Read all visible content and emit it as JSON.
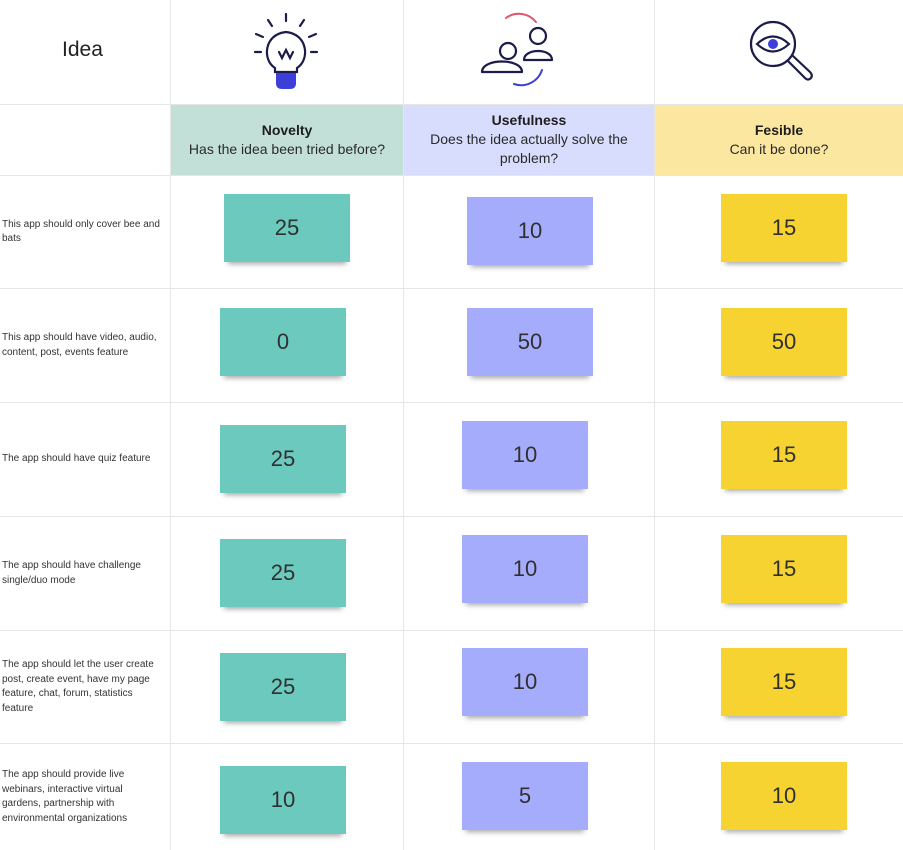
{
  "board": {
    "title": "Idea",
    "columns": [
      {
        "title": "Novelty",
        "subtitle": "Has the idea been tried before?",
        "color": "#c3e0d8",
        "note_color": "#6cc9bd",
        "icon": "lightbulb-icon"
      },
      {
        "title": "Usefulness",
        "subtitle": "Does the idea actually solve the problem?",
        "color": "#d9ddfd",
        "note_color": "#a5acfb",
        "icon": "users-icon"
      },
      {
        "title": "Fesible",
        "subtitle": "Can it be done?",
        "color": "#fbe7a0",
        "note_color": "#f6d330",
        "icon": "magnifier-eye-icon"
      }
    ],
    "rows": [
      {
        "idea": "This app should only cover bee and bats",
        "scores": [
          "25",
          "10",
          "15"
        ]
      },
      {
        "idea": "This app should have video, audio, content, post, events feature",
        "scores": [
          "0",
          "50",
          "50"
        ]
      },
      {
        "idea": "The app should have quiz feature",
        "scores": [
          "25",
          "10",
          "15"
        ]
      },
      {
        "idea": "The app should have challenge single/duo mode",
        "scores": [
          "25",
          "10",
          "15"
        ]
      },
      {
        "idea": "The app should let the user create post, create event, have my page feature, chat, forum, statistics feature",
        "scores": [
          "25",
          "10",
          "15"
        ]
      },
      {
        "idea": "The app should provide live webinars,  interactive virtual gardens, partnership with environmental organizations",
        "scores": [
          "10",
          "5",
          "10"
        ]
      }
    ]
  }
}
